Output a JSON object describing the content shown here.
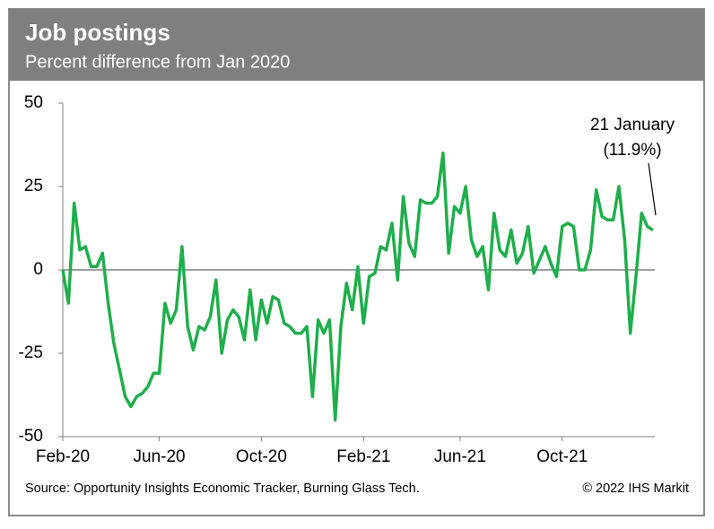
{
  "chart_data": {
    "type": "line",
    "title": "Job postings",
    "subtitle": "Percent difference from Jan 2020",
    "categories": [
      "Feb-20",
      null,
      null,
      null,
      null,
      null,
      null,
      null,
      null,
      null,
      null,
      null,
      null,
      null,
      null,
      null,
      null,
      "Jun-20",
      null,
      null,
      null,
      null,
      null,
      null,
      null,
      null,
      null,
      null,
      null,
      null,
      null,
      null,
      null,
      null,
      null,
      "Oct-20",
      null,
      null,
      null,
      null,
      null,
      null,
      null,
      null,
      null,
      null,
      null,
      null,
      null,
      null,
      null,
      null,
      null,
      "Feb-21",
      null,
      null,
      null,
      null,
      null,
      null,
      null,
      null,
      null,
      null,
      null,
      null,
      null,
      null,
      null,
      null,
      "Jun-21",
      null,
      null,
      null,
      null,
      null,
      null,
      null,
      null,
      null,
      null,
      null,
      null,
      null,
      null,
      null,
      null,
      null,
      "Oct-21",
      null,
      null,
      null,
      null,
      null,
      null,
      null,
      null,
      null,
      null,
      null,
      null,
      null,
      null,
      null,
      null
    ],
    "values": [
      0,
      -10,
      20,
      6,
      7,
      1,
      1,
      5,
      -10,
      -22,
      -30,
      -38,
      -41,
      -38,
      -37,
      -35,
      -31,
      -31,
      -10,
      -16,
      -12,
      7,
      -17,
      -24,
      -17,
      -18,
      -14,
      -3,
      -25,
      -15,
      -12,
      -14,
      -21,
      -6,
      -21,
      -9,
      -16,
      -8,
      -9,
      -16,
      -17,
      -19,
      -19,
      -17,
      -38,
      -15,
      -19,
      -15,
      -45,
      -17,
      -4,
      -12,
      1,
      -16,
      -2,
      -1,
      7,
      6,
      14,
      -3,
      22,
      8,
      4,
      21,
      20,
      20,
      22,
      35,
      5,
      19,
      17,
      25,
      9,
      4,
      7,
      -6,
      17,
      6,
      4,
      12,
      2,
      5,
      13,
      -1,
      3,
      7,
      2,
      -2,
      13,
      14,
      13,
      0,
      0,
      6,
      24,
      16,
      15,
      15,
      25,
      9,
      -19,
      -2,
      17,
      13,
      11.9
    ],
    "color": "#1fae4b",
    "ylim": [
      -50,
      50
    ],
    "yticks": [
      50,
      25,
      0,
      -25,
      -50
    ],
    "annotation": [
      "21 January",
      "(11.9%)"
    ],
    "source": "Source: Opportunity Insights Economic Tracker, Burning Glass Tech.",
    "copyright": "© 2022 IHS Markit"
  }
}
